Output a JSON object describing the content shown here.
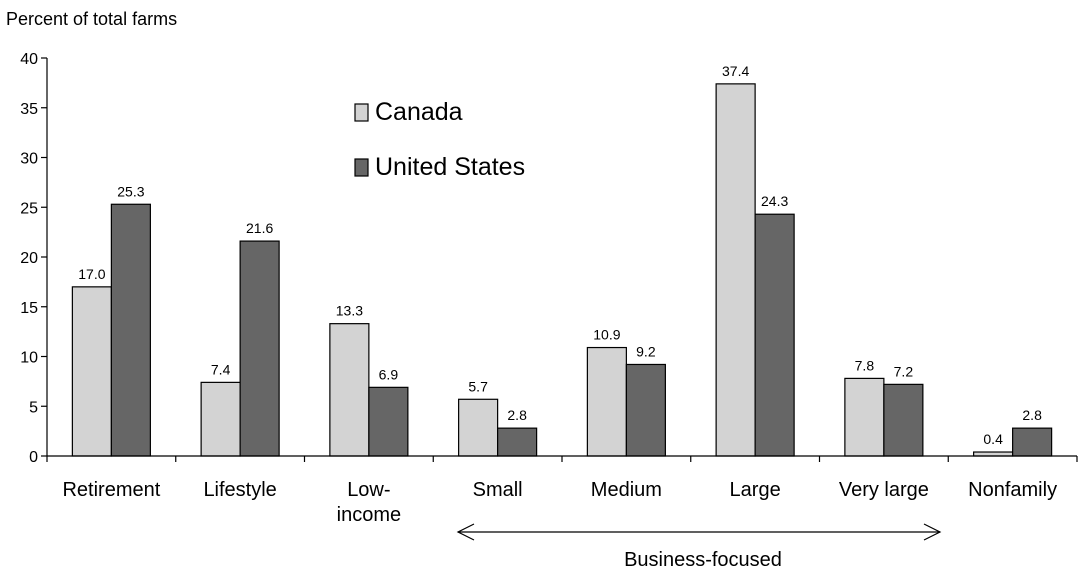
{
  "chart_data": {
    "type": "bar",
    "ylabel": "Percent of total farms",
    "xlabel": "",
    "ylim": [
      0,
      40
    ],
    "yticks": [
      "0",
      "5",
      "10",
      "15",
      "20",
      "25",
      "30",
      "35",
      "40"
    ],
    "categories": [
      [
        "Retirement"
      ],
      [
        "Lifestyle"
      ],
      [
        "Low-",
        "income"
      ],
      [
        "Small"
      ],
      [
        "Medium"
      ],
      [
        "Large"
      ],
      [
        "Very large"
      ],
      [
        "Nonfamily"
      ]
    ],
    "series": [
      {
        "name": "Canada",
        "color": "#d3d3d3",
        "values": [
          17.0,
          7.4,
          13.3,
          5.7,
          10.9,
          37.4,
          7.8,
          0.4
        ],
        "labels": [
          "17.0",
          "7.4",
          "13.3",
          "5.7",
          "10.9",
          "37.4",
          "7.8",
          "0.4"
        ]
      },
      {
        "name": "United States",
        "color": "#666666",
        "values": [
          25.3,
          21.6,
          6.9,
          2.8,
          9.2,
          24.3,
          7.2,
          2.8
        ],
        "labels": [
          "25.3",
          "21.6",
          "6.9",
          "2.8",
          "9.2",
          "24.3",
          "7.2",
          "2.8"
        ]
      }
    ],
    "legend_position": "top-center",
    "grid": false,
    "annotation": {
      "text": "Business-focused",
      "spans": [
        "Small",
        "Very large"
      ]
    }
  }
}
